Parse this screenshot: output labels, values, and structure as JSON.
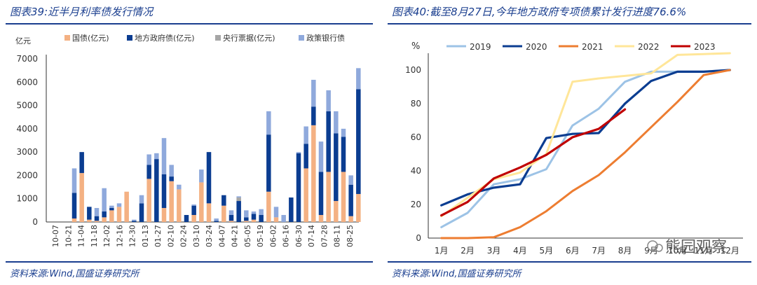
{
  "left": {
    "title": "图表39:近半月利率债发行情况",
    "source": "资料来源:Wind,国盛证券研究所",
    "unit": "亿元"
  },
  "right": {
    "title": "图表40:截至8月27日,今年地方政府专项债累计发行进度76.6%",
    "source": "资料来源:Wind,国盛证券研究所",
    "unit": "%",
    "watermark": "熊园观察"
  },
  "chart_data": [
    {
      "type": "bar",
      "stacked": true,
      "categories": [
        "10-07",
        "10-21",
        "11-04",
        "11-18",
        "12-02",
        "12-16",
        "12-30",
        "01-13",
        "02-10",
        "02-24",
        "03-24",
        "04-07",
        "04-21",
        "05-05",
        "05-19",
        "06-02",
        "06-16",
        "06-30",
        "07-14",
        "07-28",
        "08-11",
        "08-25"
      ],
      "tick_categories": [
        "10-07",
        "10-21",
        "11-04",
        "11-18",
        "12-02",
        "12-16",
        "12-30",
        "01-13",
        "01-27",
        "02-10",
        "02-24",
        "03-10",
        "03-24",
        "04-07",
        "04-21",
        "05-05",
        "05-19",
        "06-02",
        "06-16",
        "06-30",
        "07-14",
        "07-28",
        "08-11",
        "08-25"
      ],
      "ylim": [
        0,
        7000
      ],
      "yticks": [
        0,
        1000,
        2000,
        3000,
        4000,
        5000,
        6000,
        7000
      ],
      "legend_position": "top",
      "colors": {
        "国债(亿元)": "#f4b183",
        "地方政府债(亿元)": "#0b3d91",
        "央行票据(亿元)": "#a6a6a6",
        "政策银行债": "#8fa9dc"
      },
      "bars": [
        {
          "x": "11-04",
          "国债(亿元)": 150,
          "地方政府债(亿元)": 1100,
          "央行票据(亿元)": 0,
          "政策银行债": 1050
        },
        {
          "x": "11-04b",
          "国债(亿元)": 2100,
          "地方政府债(亿元)": 900,
          "央行票据(亿元)": 0,
          "政策银行债": 0
        },
        {
          "x": "11-18",
          "国债(亿元)": 100,
          "地方政府债(亿元)": 550,
          "央行票据(亿元)": 0,
          "政策银行债": 0
        },
        {
          "x": "11-18b",
          "国债(亿元)": 50,
          "地方政府债(亿元)": 200,
          "央行票据(亿元)": 0,
          "政策银行债": 350
        },
        {
          "x": "12-02",
          "国债(亿元)": 200,
          "地方政府债(亿元)": 250,
          "央行票据(亿元)": 0,
          "政策银行债": 1000
        },
        {
          "x": "12-02b",
          "国债(亿元)": 500,
          "地方政府债(亿元)": 100,
          "央行票据(亿元)": 0,
          "政策银行债": 100
        },
        {
          "x": "12-16",
          "国债(亿元)": 650,
          "地方政府债(亿元)": 0,
          "央行票据(亿元)": 0,
          "政策银行债": 150
        },
        {
          "x": "12-16b",
          "国债(亿元)": 1300,
          "地方政府债(亿元)": 0,
          "央行票据(亿元)": 0,
          "政策银行债": 0
        },
        {
          "x": "12-30",
          "国债(亿元)": 0,
          "地方政府债(亿元)": 50,
          "央行票据(亿元)": 0,
          "政策银行债": 50
        },
        {
          "x": "01-13",
          "国债(亿元)": 0,
          "地方政府债(亿元)": 800,
          "央行票据(亿元)": 0,
          "政策银行债": 350
        },
        {
          "x": "01-13b",
          "国债(亿元)": 1850,
          "地方政府债(亿元)": 600,
          "央行票据(亿元)": 0,
          "政策银行债": 450
        },
        {
          "x": "01-27",
          "国债(亿元)": 0,
          "地方政府债(亿元)": 2700,
          "央行票据(亿元)": 0,
          "政策银行债": 250
        },
        {
          "x": "02-10",
          "国债(亿元)": 600,
          "地方政府债(亿元)": 1450,
          "央行票据(亿元)": 0,
          "政策银行债": 1550
        },
        {
          "x": "02-10b",
          "国债(亿元)": 1750,
          "地方政府债(亿元)": 200,
          "央行票据(亿元)": 0,
          "政策银行债": 500
        },
        {
          "x": "02-24",
          "国债(亿元)": 1400,
          "地方政府债(亿元)": 0,
          "央行票据(亿元)": 0,
          "政策银行债": 200
        },
        {
          "x": "03-10",
          "国债(亿元)": 0,
          "地方政府债(亿元)": 300,
          "央行票据(亿元)": 0,
          "政策银行债": 0
        },
        {
          "x": "03-10b",
          "国债(亿元)": 300,
          "地方政府债(亿元)": 400,
          "央行票据(亿元)": 0,
          "政策银行债": 50
        },
        {
          "x": "03-24",
          "国债(亿元)": 1700,
          "地方政府债(亿元)": 0,
          "央行票据(亿元)": 0,
          "政策银行债": 550
        },
        {
          "x": "03-24b",
          "国债(亿元)": 800,
          "地方政府债(亿元)": 2200,
          "央行票据(亿元)": 0,
          "政策银行债": 0
        },
        {
          "x": "04-07",
          "国债(亿元)": 0,
          "地方政府债(亿元)": 50,
          "央行票据(亿元)": 0,
          "政策银行债": 100
        },
        {
          "x": "04-21",
          "国债(亿元)": 700,
          "地方政府债(亿元)": 450,
          "央行票据(亿元)": 0,
          "政策银行债": 0
        },
        {
          "x": "04-21b",
          "国债(亿元)": 50,
          "地方政府债(亿元)": 250,
          "央行票据(亿元)": 0,
          "政策银行债": 200
        },
        {
          "x": "05-05",
          "国债(亿元)": 0,
          "地方政府债(亿元)": 900,
          "央行票据(亿元)": 150,
          "政策银行债": 50
        },
        {
          "x": "05-05b",
          "国债(亿元)": 50,
          "地方政府债(亿元)": 150,
          "央行票据(亿元)": 0,
          "政策银行债": 300
        },
        {
          "x": "05-19",
          "国债(亿元)": 100,
          "地方政府债(亿元)": 250,
          "央行票据(亿元)": 0,
          "政策银行债": 100
        },
        {
          "x": "05-19b",
          "国债(亿元)": 0,
          "地方政府债(亿元)": 300,
          "央行票据(亿元)": 0,
          "政策银行债": 250
        },
        {
          "x": "06-02",
          "国债(亿元)": 1300,
          "地方政府债(亿元)": 2450,
          "央行票据(亿元)": 0,
          "政策银行债": 1000
        },
        {
          "x": "06-02b",
          "国债(亿元)": 200,
          "地方政府债(亿元)": 0,
          "央行票据(亿元)": 0,
          "政策银行债": 450
        },
        {
          "x": "06-16",
          "国债(亿元)": 0,
          "地方政府债(亿元)": 0,
          "央行票据(亿元)": 0,
          "政策银行债": 300
        },
        {
          "x": "06-16b",
          "国债(亿元)": 0,
          "地方政府债(亿元)": 1050,
          "央行票据(亿元)": 0,
          "政策银行债": 0
        },
        {
          "x": "06-30",
          "国债(亿元)": 0,
          "地方政府债(亿元)": 2950,
          "央行票据(亿元)": 0,
          "政策银行债": 50
        },
        {
          "x": "06-30b",
          "国债(亿元)": 2300,
          "地方政府债(亿元)": 1050,
          "央行票据(亿元)": 0,
          "政策银行债": 750
        },
        {
          "x": "07-14",
          "国债(亿元)": 4150,
          "地方政府债(亿元)": 800,
          "央行票据(亿元)": 0,
          "政策银行债": 1150
        },
        {
          "x": "07-14b",
          "国债(亿元)": 300,
          "地方政府债(亿元)": 1850,
          "央行票据(亿元)": 0,
          "政策银行债": 1300
        },
        {
          "x": "07-28",
          "国债(亿元)": 2150,
          "地方政府债(亿元)": 2600,
          "央行票据(亿元)": 0,
          "政策银行债": 900
        },
        {
          "x": "07-28b",
          "国债(亿元)": 900,
          "地方政府债(亿元)": 2900,
          "央行票据(亿元)": 0,
          "政策银行债": 950
        },
        {
          "x": "08-11",
          "国债(亿元)": 2150,
          "地方政府债(亿元)": 1500,
          "央行票据(亿元)": 0,
          "政策银行债": 350
        },
        {
          "x": "08-11b",
          "国债(亿元)": 250,
          "地方政府债(亿元)": 1350,
          "央行票据(亿元)": 0,
          "政策银行债": 400
        },
        {
          "x": "08-25",
          "国债(亿元)": 1200,
          "地方政府债(亿元)": 4500,
          "央行票据(亿元)": 0,
          "政策银行债": 900
        }
      ],
      "series_order": [
        "国债(亿元)",
        "地方政府债(亿元)",
        "央行票据(亿元)",
        "政策银行债"
      ]
    },
    {
      "type": "line",
      "categories": [
        "1月",
        "2月",
        "3月",
        "4月",
        "5月",
        "6月",
        "7月",
        "8月",
        "9月",
        "10月",
        "11月",
        "12月"
      ],
      "ylim": [
        0,
        110
      ],
      "yticks": [
        0,
        20,
        40,
        60,
        80,
        100
      ],
      "legend_position": "top",
      "series": [
        {
          "name": "2019",
          "color": "#9dc3e6",
          "values": [
            6.5,
            15,
            32,
            35,
            41,
            67,
            77,
            93,
            99,
            99,
            99,
            100
          ]
        },
        {
          "name": "2020",
          "color": "#0b3d91",
          "values": [
            19.5,
            26,
            30,
            32,
            59.5,
            62,
            62.5,
            80,
            93.5,
            99,
            99,
            100
          ]
        },
        {
          "name": "2021",
          "color": "#ed7d31",
          "values": [
            0,
            0,
            0.5,
            6.5,
            16,
            28,
            37.5,
            51,
            66,
            81,
            97,
            100
          ]
        },
        {
          "name": "2022",
          "color": "#ffe699",
          "values": [
            13,
            24,
            35,
            39,
            50,
            93,
            95,
            96.5,
            98,
            109,
            109.5,
            110
          ]
        },
        {
          "name": "2023",
          "color": "#c00000",
          "values": [
            13.5,
            21.5,
            35.5,
            42,
            49.5,
            60,
            65,
            76.6,
            null,
            null,
            null,
            null
          ]
        }
      ]
    }
  ]
}
